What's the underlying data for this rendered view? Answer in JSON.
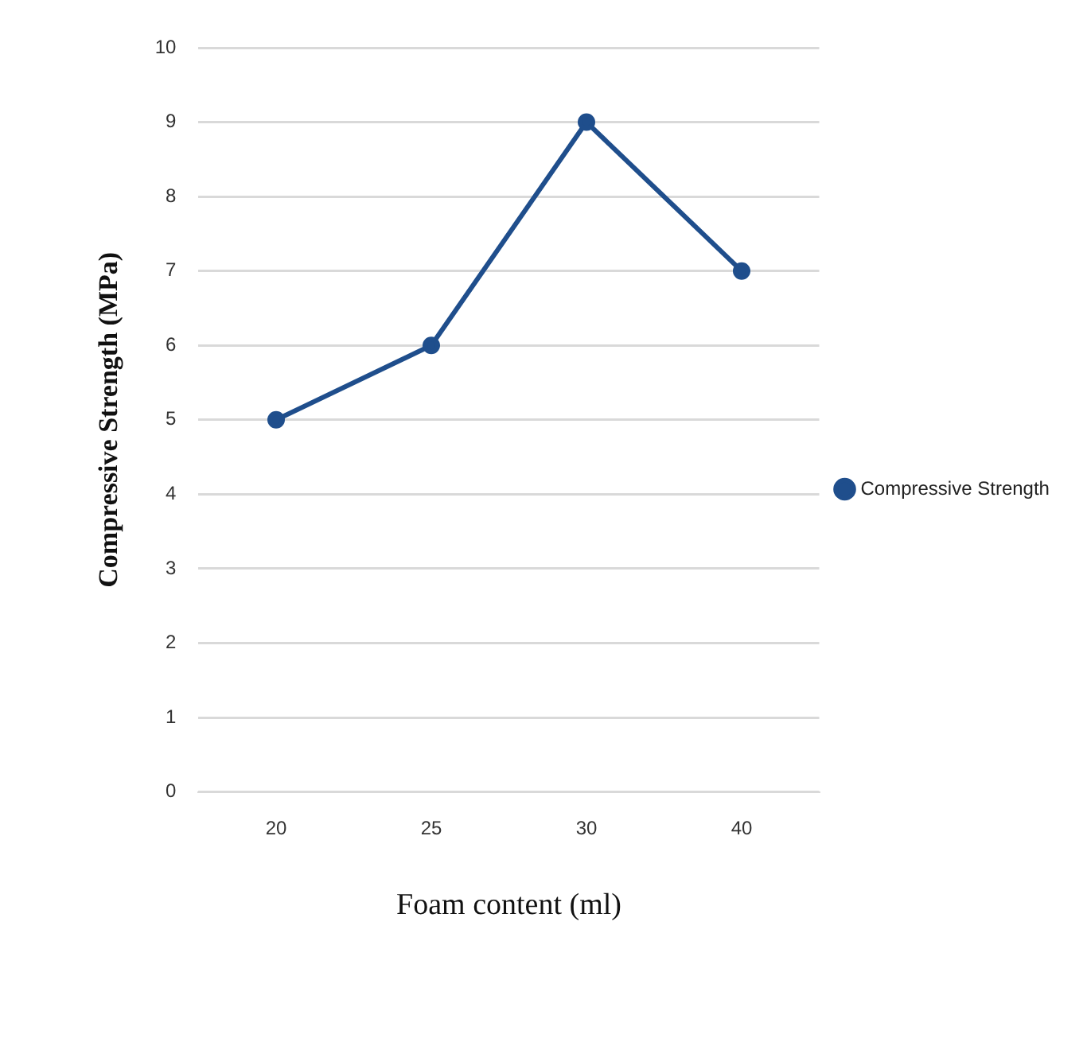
{
  "chart_data": {
    "type": "line",
    "xlabel": "Foam content (ml)",
    "ylabel": "Compressive Strength (MPa)",
    "categories": [
      "20",
      "25",
      "30",
      "40"
    ],
    "series": [
      {
        "name": "Compressive Strength",
        "color": "#1f4e8c",
        "values": [
          5,
          6,
          9,
          7
        ]
      }
    ],
    "ylim": [
      0,
      10
    ],
    "yticks": [
      0,
      1,
      2,
      3,
      4,
      5,
      6,
      7,
      8,
      9,
      10
    ],
    "grid": "y",
    "legend": "right",
    "marker": "circle",
    "line_style": "solid"
  }
}
